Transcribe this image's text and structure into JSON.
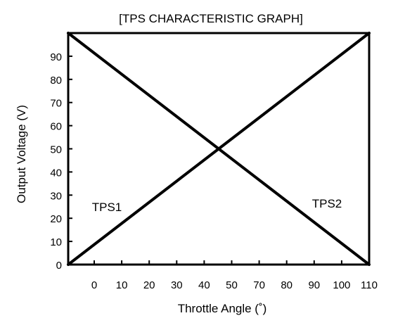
{
  "chart_data": {
    "type": "line",
    "title": "[TPS CHARACTERISTIC GRAPH]",
    "xlabel": "Throttle Angle (˚)",
    "ylabel": "Output Voltage (V)",
    "x_ticks": [
      "0",
      "10",
      "20",
      "30",
      "40",
      "50",
      "70",
      "80",
      "90",
      "100",
      "110"
    ],
    "y_ticks": [
      "0",
      "10",
      "20",
      "30",
      "40",
      "50",
      "60",
      "70",
      "80",
      "90"
    ],
    "ylim": [
      0,
      100
    ],
    "grid": false,
    "legend": "none",
    "series": [
      {
        "name": "TPS1",
        "points": [
          {
            "x": "start",
            "y": 0
          },
          {
            "x": "110",
            "y": 100
          }
        ]
      },
      {
        "name": "TPS2",
        "points": [
          {
            "x": "start",
            "y": 100
          },
          {
            "x": "110",
            "y": 0
          }
        ]
      }
    ],
    "colors": {
      "line": "#000000",
      "axes": "#000000",
      "background": "#ffffff"
    }
  }
}
